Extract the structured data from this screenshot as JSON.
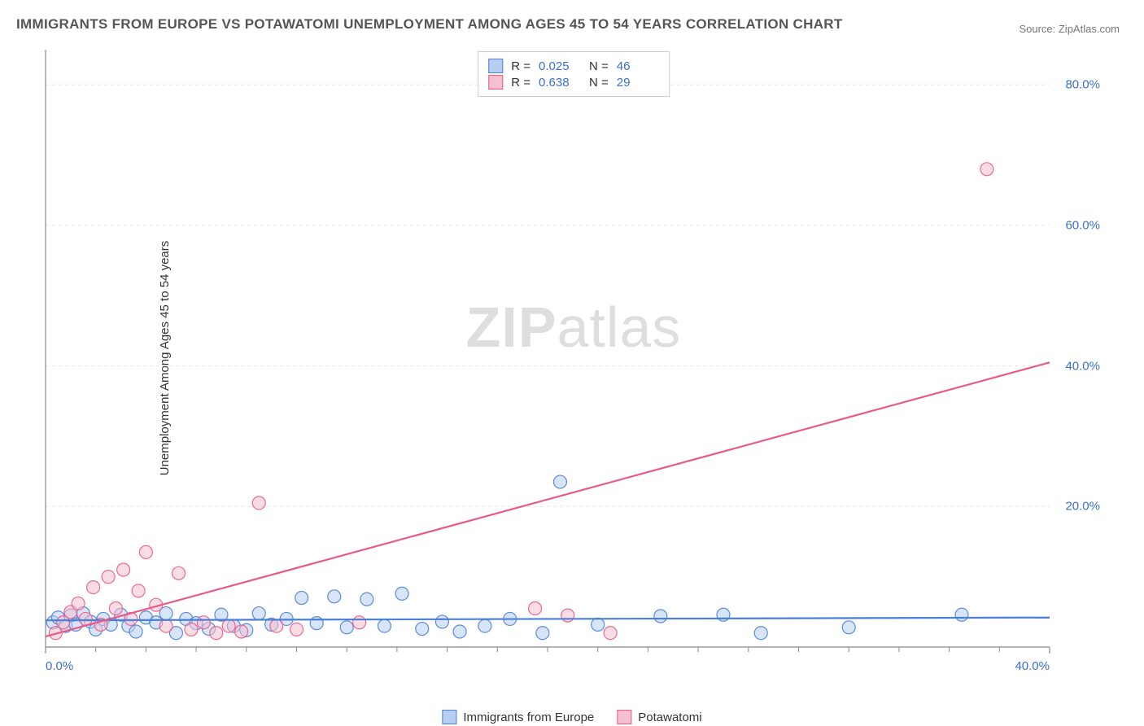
{
  "title": "IMMIGRANTS FROM EUROPE VS POTAWATOMI UNEMPLOYMENT AMONG AGES 45 TO 54 YEARS CORRELATION CHART",
  "source": "Source: ZipAtlas.com",
  "y_axis_label": "Unemployment Among Ages 45 to 54 years",
  "watermark": {
    "bold": "ZIP",
    "rest": "atlas"
  },
  "chart": {
    "type": "scatter",
    "background_color": "#ffffff",
    "grid_color": "#e6e6e6",
    "axis_color": "#888888",
    "xlim": [
      0,
      40
    ],
    "ylim": [
      0,
      85
    ],
    "x_ticks": [
      0,
      40
    ],
    "x_tick_labels": [
      "0.0%",
      "40.0%"
    ],
    "x_minor_ticks": [
      2,
      4,
      6,
      8,
      10,
      12,
      14,
      16,
      18,
      20,
      22,
      24,
      26,
      28,
      30,
      32,
      34,
      36,
      38
    ],
    "y_ticks": [
      20,
      40,
      60,
      80
    ],
    "y_tick_labels": [
      "20.0%",
      "40.0%",
      "60.0%",
      "80.0%"
    ],
    "series": [
      {
        "name": "Immigrants from Europe",
        "stroke": "#4a80d6",
        "fill": "#b8cef0",
        "marker_radius": 8,
        "marker_opacity": 0.55,
        "line_width": 2.2,
        "r": "0.025",
        "n": "46",
        "trend": {
          "x1": 0,
          "y1": 3.8,
          "x2": 40,
          "y2": 4.2
        },
        "points": [
          [
            0.3,
            3.5
          ],
          [
            0.5,
            4.2
          ],
          [
            0.8,
            3.0
          ],
          [
            1.0,
            4.5
          ],
          [
            1.2,
            3.2
          ],
          [
            1.5,
            4.8
          ],
          [
            1.8,
            3.6
          ],
          [
            2.0,
            2.5
          ],
          [
            2.3,
            4.0
          ],
          [
            2.6,
            3.2
          ],
          [
            3.0,
            4.6
          ],
          [
            3.3,
            3.0
          ],
          [
            3.6,
            2.2
          ],
          [
            4.0,
            4.2
          ],
          [
            4.4,
            3.5
          ],
          [
            4.8,
            4.8
          ],
          [
            5.2,
            2.0
          ],
          [
            5.6,
            4.0
          ],
          [
            6.0,
            3.4
          ],
          [
            6.5,
            2.6
          ],
          [
            7.0,
            4.6
          ],
          [
            7.5,
            3.0
          ],
          [
            8.0,
            2.4
          ],
          [
            8.5,
            4.8
          ],
          [
            9.0,
            3.2
          ],
          [
            9.6,
            4.0
          ],
          [
            10.2,
            7.0
          ],
          [
            10.8,
            3.4
          ],
          [
            11.5,
            7.2
          ],
          [
            12.0,
            2.8
          ],
          [
            12.8,
            6.8
          ],
          [
            13.5,
            3.0
          ],
          [
            14.2,
            7.6
          ],
          [
            15.0,
            2.6
          ],
          [
            15.8,
            3.6
          ],
          [
            16.5,
            2.2
          ],
          [
            17.5,
            3.0
          ],
          [
            18.5,
            4.0
          ],
          [
            19.8,
            2.0
          ],
          [
            20.5,
            23.5
          ],
          [
            22.0,
            3.2
          ],
          [
            24.5,
            4.4
          ],
          [
            27.0,
            4.6
          ],
          [
            28.5,
            2.0
          ],
          [
            32.0,
            2.8
          ],
          [
            36.5,
            4.6
          ]
        ]
      },
      {
        "name": "Potawatomi",
        "stroke": "#e85b86",
        "fill": "#f6c0d0",
        "marker_radius": 8,
        "marker_opacity": 0.55,
        "line_width": 2.2,
        "r": "0.638",
        "n": "29",
        "trend": {
          "x1": 0,
          "y1": 1.5,
          "x2": 40,
          "y2": 40.5
        },
        "points": [
          [
            0.4,
            2.0
          ],
          [
            0.7,
            3.5
          ],
          [
            1.0,
            5.0
          ],
          [
            1.3,
            6.2
          ],
          [
            1.6,
            4.0
          ],
          [
            1.9,
            8.5
          ],
          [
            2.2,
            3.2
          ],
          [
            2.5,
            10.0
          ],
          [
            2.8,
            5.5
          ],
          [
            3.1,
            11.0
          ],
          [
            3.4,
            4.0
          ],
          [
            3.7,
            8.0
          ],
          [
            4.0,
            13.5
          ],
          [
            4.4,
            6.0
          ],
          [
            4.8,
            3.0
          ],
          [
            5.3,
            10.5
          ],
          [
            5.8,
            2.5
          ],
          [
            6.3,
            3.5
          ],
          [
            6.8,
            2.0
          ],
          [
            7.3,
            3.0
          ],
          [
            7.8,
            2.2
          ],
          [
            8.5,
            20.5
          ],
          [
            9.2,
            3.0
          ],
          [
            10.0,
            2.5
          ],
          [
            12.5,
            3.5
          ],
          [
            19.5,
            5.5
          ],
          [
            20.8,
            4.5
          ],
          [
            22.5,
            2.0
          ],
          [
            37.5,
            68.0
          ]
        ]
      }
    ]
  },
  "bottom_legend": [
    {
      "label": "Immigrants from Europe",
      "stroke": "#4a80d6",
      "fill": "#b8cef0"
    },
    {
      "label": "Potawatomi",
      "stroke": "#e85b86",
      "fill": "#f6c0d0"
    }
  ]
}
